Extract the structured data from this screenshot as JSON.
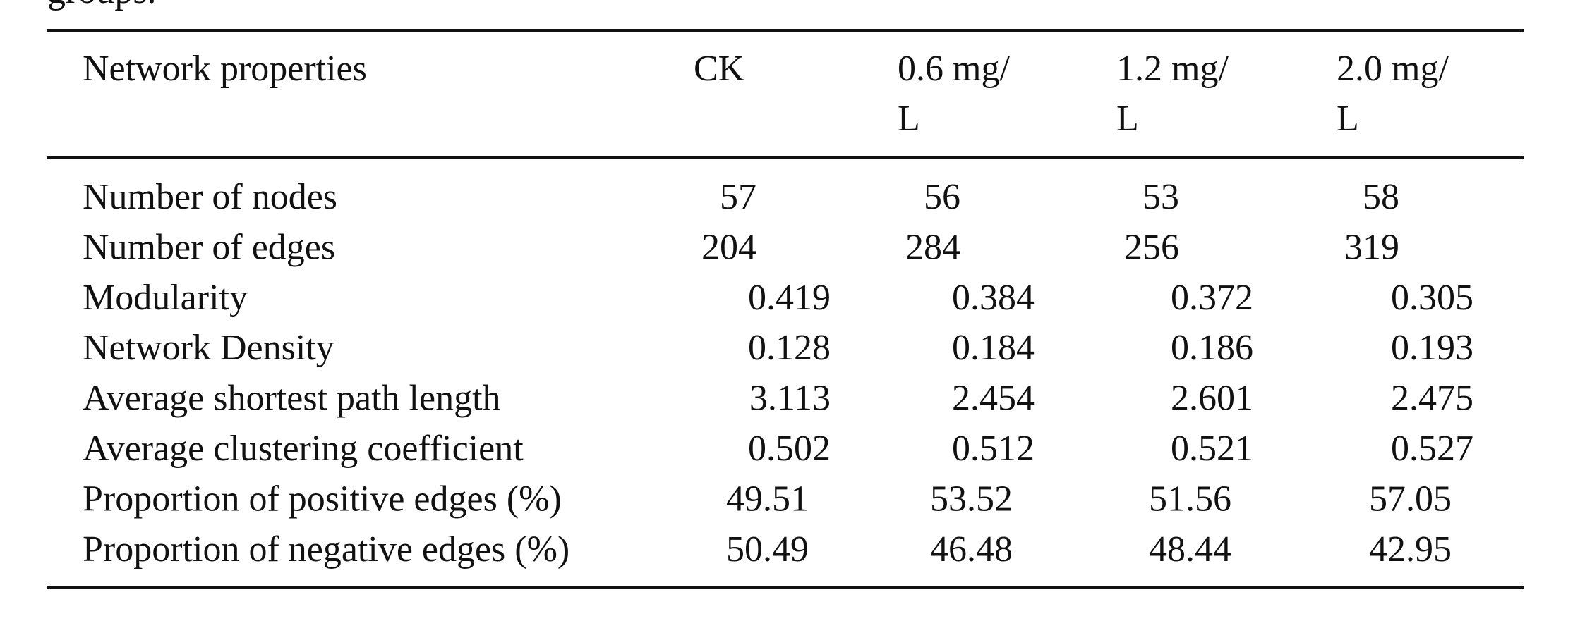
{
  "caption_tail": "groups.",
  "table": {
    "header": [
      "Network properties",
      "CK",
      "0.6 mg/\nL",
      "1.2 mg/\nL",
      "2.0 mg/\nL"
    ],
    "rows": [
      [
        "Number of nodes",
        "57",
        "56",
        "53",
        "58"
      ],
      [
        "Number of edges",
        "204",
        "284",
        "256",
        "319"
      ],
      [
        "Modularity",
        "0.419",
        "0.384",
        "0.372",
        "0.305"
      ],
      [
        "Network Density",
        "0.128",
        "0.184",
        "0.186",
        "0.193"
      ],
      [
        "Average shortest path length",
        "3.113",
        "2.454",
        "2.601",
        "2.475"
      ],
      [
        "Average clustering coefficient",
        "0.502",
        "0.512",
        "0.521",
        "0.527"
      ],
      [
        "Proportion of positive edges (%)",
        "49.51",
        "53.52",
        "51.56",
        "57.05"
      ],
      [
        "Proportion of negative edges (%)",
        "50.49",
        "46.48",
        "48.44",
        "42.95"
      ]
    ]
  }
}
